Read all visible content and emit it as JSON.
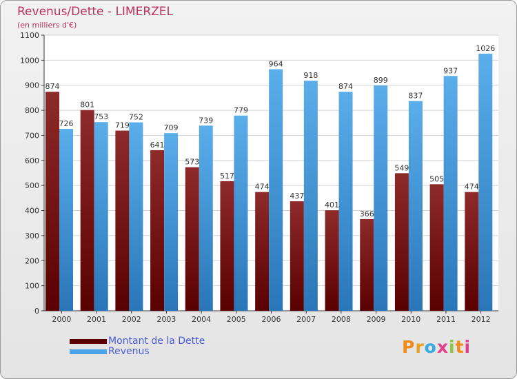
{
  "header": {
    "title": "Revenus/Dette - LIMERZEL",
    "subtitle": "(en milliers d'€)"
  },
  "logo": {
    "text": "Proxiti",
    "colors": [
      "#f08c1a",
      "#e8a31e",
      "#35a9e0",
      "#e43e8a",
      "#8cc63f",
      "#f08c1a",
      "#e43e8a"
    ]
  },
  "chart_data": {
    "type": "bar",
    "title": "Revenus/Dette - LIMERZEL",
    "subtitle": "(en milliers d'€)",
    "categories": [
      "2000",
      "2001",
      "2002",
      "2003",
      "2004",
      "2005",
      "2006",
      "2007",
      "2008",
      "2009",
      "2010",
      "2011",
      "2012"
    ],
    "series": [
      {
        "name": "Montant de la Dette",
        "values": [
          874,
          801,
          719,
          641,
          573,
          517,
          474,
          437,
          401,
          366,
          549,
          505,
          474
        ],
        "color": "#7a1a1a"
      },
      {
        "name": "Revenus",
        "values": [
          726,
          753,
          752,
          709,
          739,
          779,
          964,
          918,
          874,
          899,
          837,
          937,
          1026
        ],
        "color": "#4aa3e6"
      }
    ],
    "ylim": [
      0,
      1100
    ],
    "yticks": [
      0,
      100,
      200,
      300,
      400,
      500,
      600,
      700,
      800,
      900,
      1000,
      1100
    ],
    "grid": true,
    "legend_position": "bottom-left"
  }
}
